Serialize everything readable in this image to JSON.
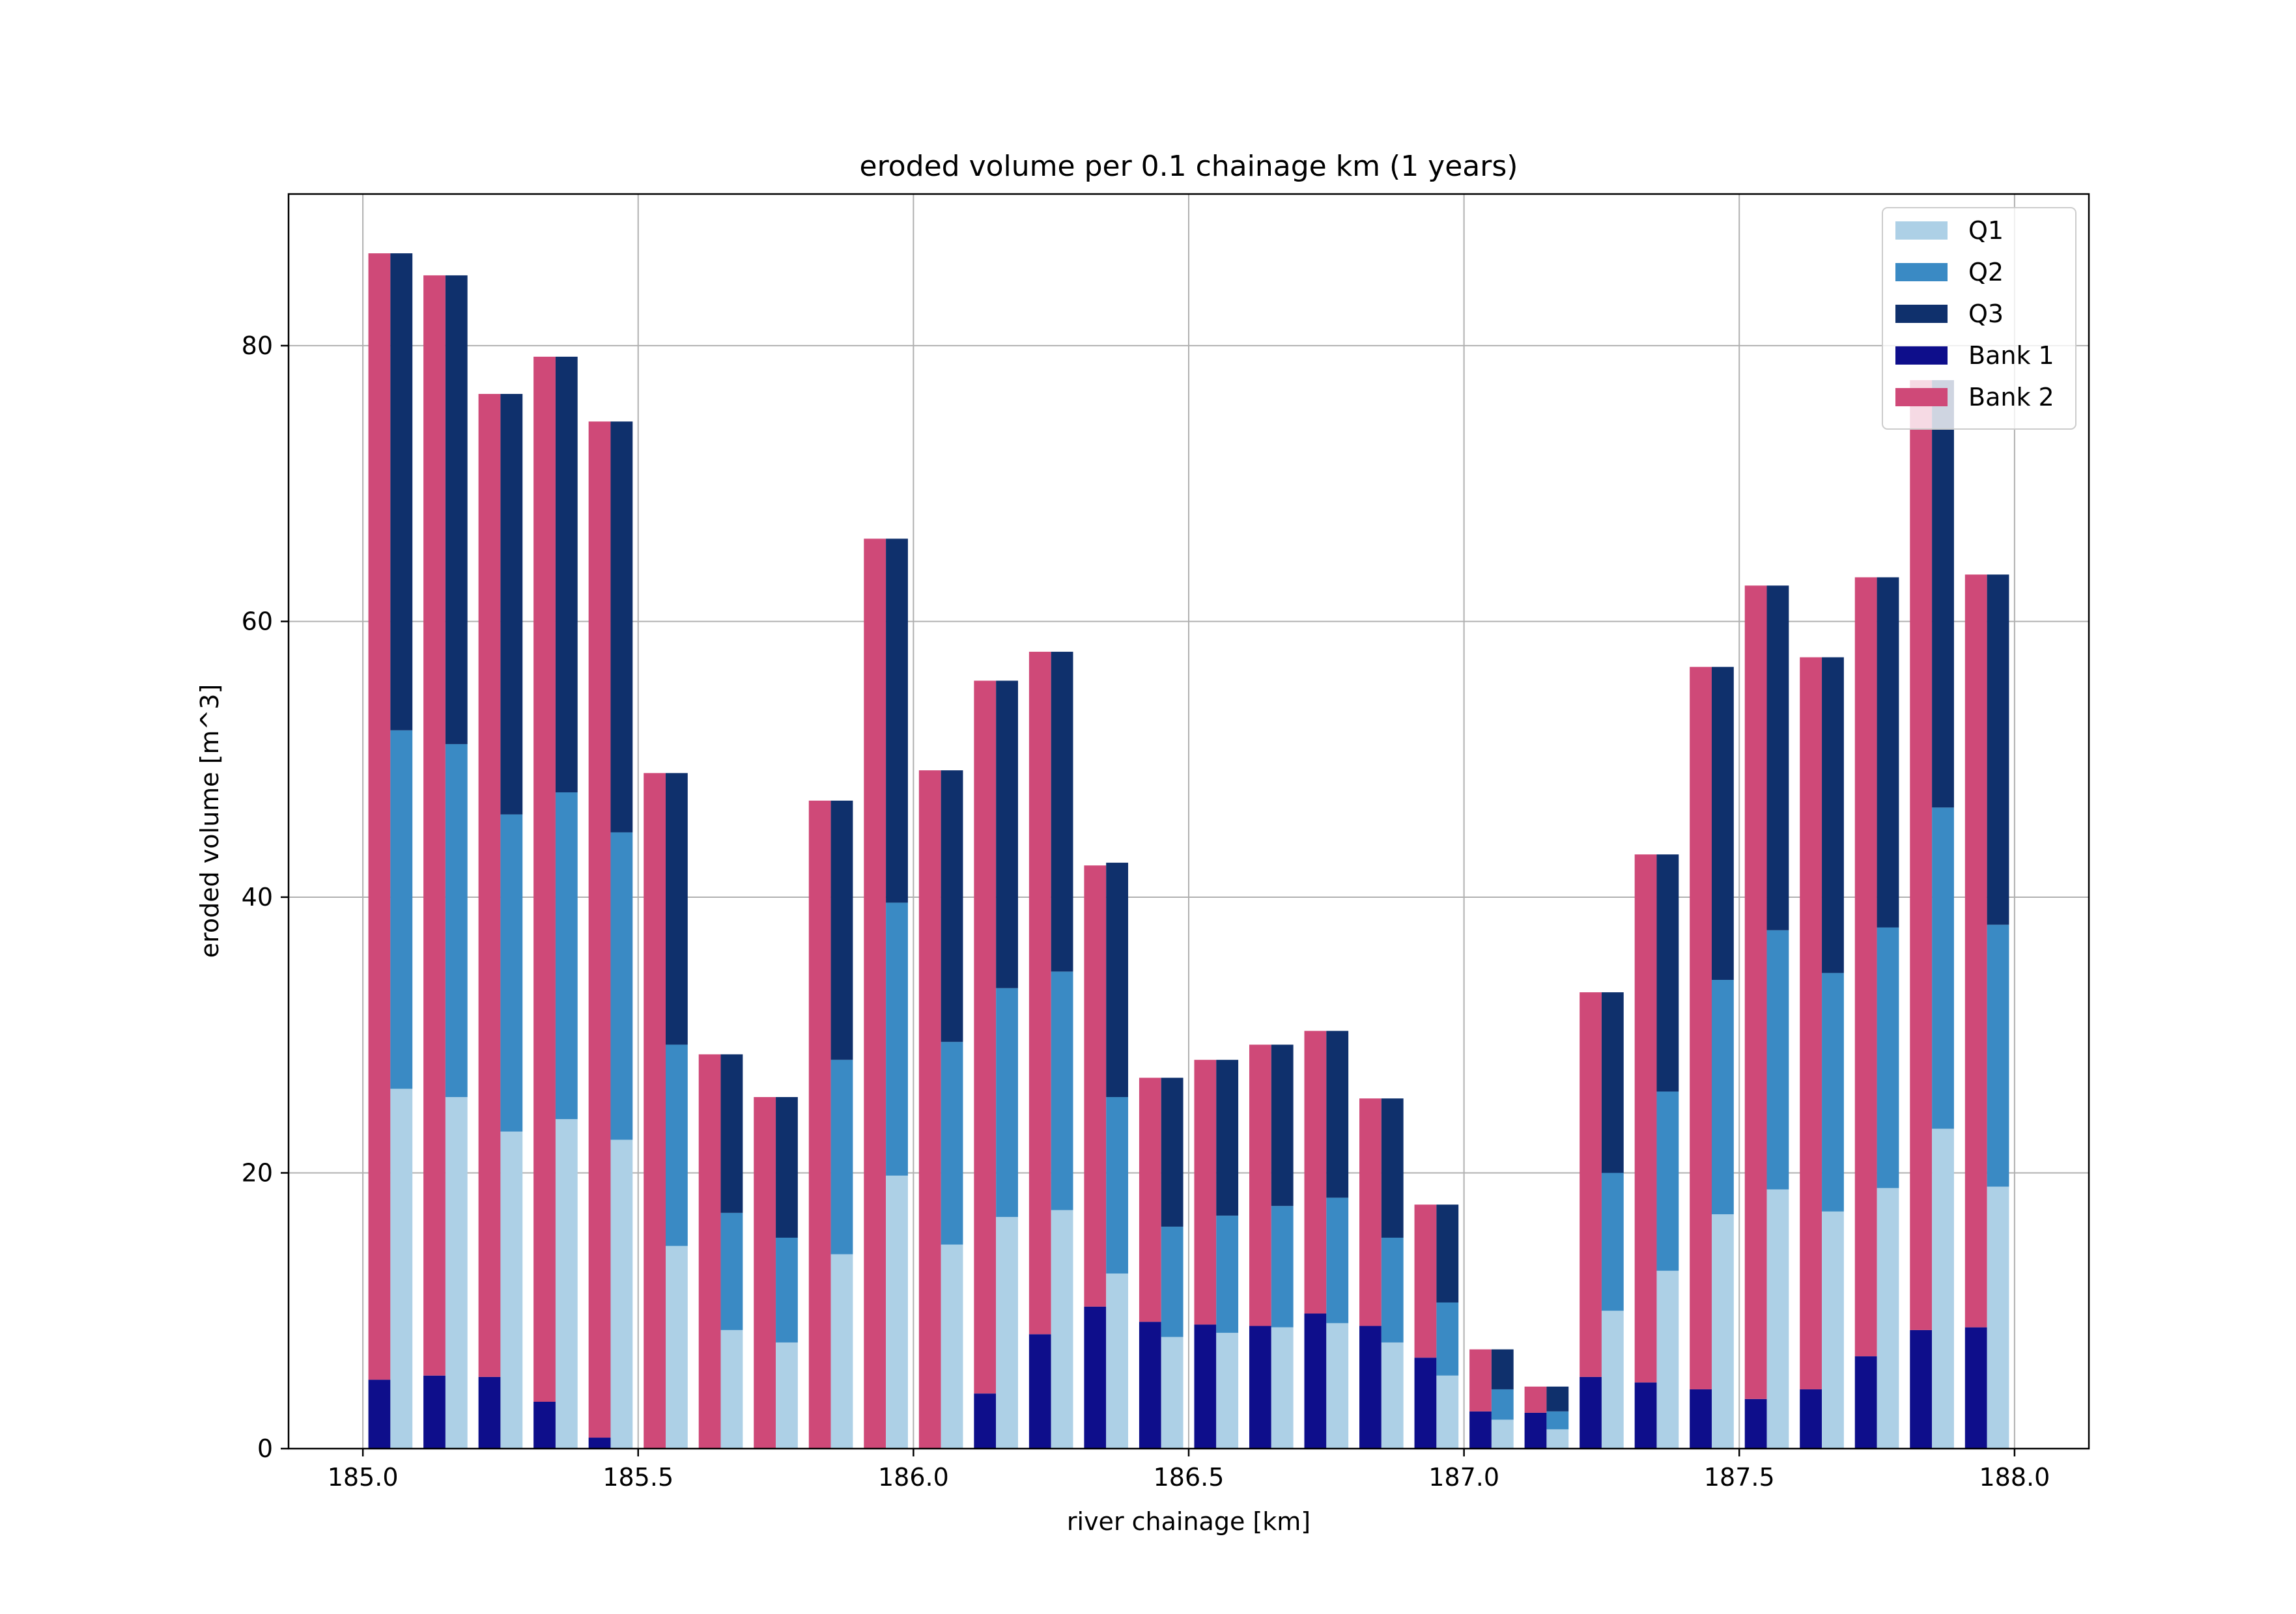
{
  "chart_data": {
    "type": "bar",
    "stacked": true,
    "title": "eroded volume per 0.1 chainage km (1 years)",
    "xlabel": "river chainage [km]",
    "ylabel": "eroded volume [m^3]",
    "xlim": [
      184.865,
      188.135
    ],
    "ylim": [
      0,
      91
    ],
    "xticks": [
      185.0,
      185.5,
      186.0,
      186.5,
      187.0,
      187.5,
      188.0
    ],
    "xtick_labels": [
      "185.0",
      "185.5",
      "186.0",
      "186.5",
      "187.0",
      "187.5",
      "188.0"
    ],
    "yticks": [
      0,
      20,
      40,
      60,
      80
    ],
    "ytick_labels": [
      "0",
      "20",
      "40",
      "60",
      "80"
    ],
    "grid": true,
    "legend_position": "top-right",
    "legend": [
      {
        "name": "Q1",
        "color": "#add0e6"
      },
      {
        "name": "Q2",
        "color": "#3a8ac4"
      },
      {
        "name": "Q3",
        "color": "#0f306c"
      },
      {
        "name": "Bank 1",
        "color": "#0e0e8b"
      },
      {
        "name": "Bank 2",
        "color": "#cf4978"
      }
    ],
    "x": [
      185.05,
      185.15,
      185.25,
      185.35,
      185.45,
      185.55,
      185.65,
      185.75,
      185.85,
      185.95,
      186.05,
      186.15,
      186.25,
      186.35,
      186.45,
      186.55,
      186.65,
      186.75,
      186.85,
      186.95,
      187.05,
      187.15,
      187.25,
      187.35,
      187.45,
      187.55,
      187.65,
      187.75,
      187.85,
      187.95
    ],
    "bank_series": [
      {
        "name": "Bank 1",
        "values": [
          5.0,
          5.3,
          5.2,
          3.4,
          0.8,
          0,
          0,
          0,
          0,
          0,
          0,
          4.0,
          8.3,
          10.3,
          9.2,
          9.0,
          8.9,
          9.8,
          8.9,
          6.6,
          2.7,
          2.6,
          5.2,
          4.8,
          4.3,
          3.6,
          4.3,
          6.7,
          8.6,
          8.8
        ]
      },
      {
        "name": "Bank 2",
        "values": [
          81.7,
          79.8,
          71.3,
          75.8,
          73.7,
          49.0,
          28.6,
          25.5,
          47.0,
          66.0,
          49.2,
          51.7,
          49.5,
          32.0,
          17.7,
          19.2,
          20.4,
          20.5,
          16.5,
          11.1,
          4.5,
          1.9,
          27.9,
          38.3,
          52.4,
          59.0,
          53.1,
          56.5,
          68.9,
          54.6
        ]
      }
    ],
    "discharge_series": [
      {
        "name": "Q1",
        "values": [
          26.1,
          25.5,
          23.0,
          23.9,
          22.4,
          14.7,
          8.6,
          7.7,
          14.1,
          19.8,
          14.8,
          16.8,
          17.3,
          12.7,
          8.1,
          8.4,
          8.8,
          9.1,
          7.7,
          5.3,
          2.1,
          1.4,
          10.0,
          12.9,
          17.0,
          18.8,
          17.2,
          18.9,
          23.2,
          19.0
        ]
      },
      {
        "name": "Q2",
        "values": [
          26.0,
          25.6,
          23.0,
          23.7,
          22.3,
          14.6,
          8.5,
          7.6,
          14.1,
          19.8,
          14.7,
          16.6,
          17.3,
          12.8,
          8.0,
          8.5,
          8.8,
          9.1,
          7.6,
          5.3,
          2.2,
          1.3,
          10.0,
          13.0,
          17.0,
          18.8,
          17.3,
          18.9,
          23.3,
          19.0
        ]
      },
      {
        "name": "Q3",
        "values": [
          34.6,
          34.0,
          30.5,
          31.6,
          29.8,
          19.7,
          11.5,
          10.2,
          18.8,
          26.4,
          19.7,
          22.3,
          23.2,
          17.0,
          10.8,
          11.3,
          11.7,
          12.1,
          10.1,
          7.1,
          2.9,
          1.8,
          13.1,
          17.2,
          22.7,
          25.0,
          22.9,
          25.4,
          31.0,
          25.4
        ]
      }
    ]
  }
}
